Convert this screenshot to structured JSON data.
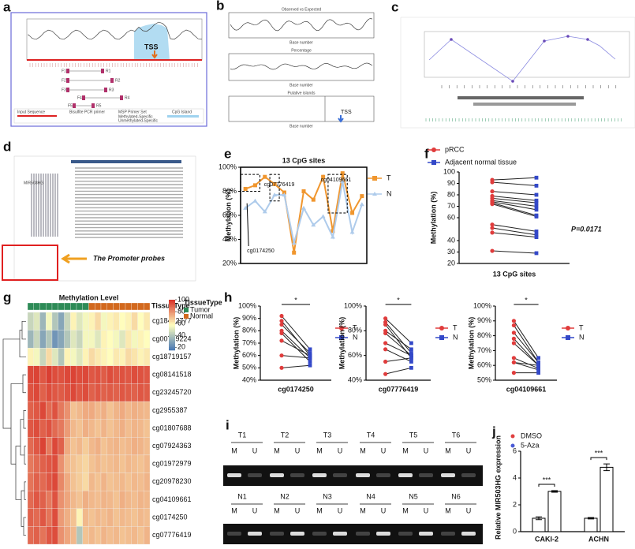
{
  "panel_labels": [
    "a",
    "b",
    "c",
    "d",
    "e",
    "f",
    "g",
    "h",
    "i",
    "j"
  ],
  "diagrams": {
    "a": {
      "tss": "TSS",
      "forward": [
        "F1",
        "F2",
        "F3",
        "F4",
        "F5"
      ],
      "reverse": [
        "R1",
        "R2",
        "R3",
        "R4",
        "R5"
      ],
      "legend": [
        "Input Sequence",
        "Bisulfite PCR primer",
        "MSP Primer Set",
        "CpG Island",
        "Methylated-Specific",
        "Unmethylated-Specific"
      ]
    },
    "b": {
      "titles": [
        "Observed vs Expected",
        "Percentage",
        "Putative islands"
      ],
      "xlabel": "Base number",
      "tss": "TSS"
    },
    "d": {
      "gene": "MIR503HG",
      "callout": "The Promoter probes"
    },
    "i": {
      "tumor": [
        "T1",
        "T2",
        "T3",
        "T4",
        "T5",
        "T6"
      ],
      "normal": [
        "N1",
        "N2",
        "N3",
        "N4",
        "N5",
        "N6"
      ],
      "lanes": [
        "M",
        "U"
      ]
    }
  },
  "chart_data": [
    {
      "type": "line",
      "title": "13 CpG sites",
      "ylabel": "Methylation (%)",
      "categories": [
        null,
        null,
        null,
        null,
        null,
        null,
        null,
        null,
        null,
        null,
        null,
        null,
        null
      ],
      "series": [
        {
          "name": "T",
          "color": "#f0962e",
          "values": [
            82,
            85,
            92,
            86,
            79,
            29,
            80,
            73,
            92,
            47,
            95,
            62,
            76
          ]
        },
        {
          "name": "N",
          "color": "#aecbeb",
          "values": [
            66,
            72,
            63,
            77,
            77,
            37,
            66,
            52,
            59,
            42,
            88,
            46,
            69
          ]
        }
      ],
      "ylim": [
        20,
        100
      ],
      "yticks": [
        {
          "value": 20,
          "label": "20%"
        },
        {
          "value": 40,
          "label": "40%"
        },
        {
          "value": 60,
          "label": "60%"
        },
        {
          "value": 80,
          "label": "80%"
        },
        {
          "value": 100,
          "label": "100%"
        }
      ],
      "annotations": [
        "cg0174250",
        "cg07776419",
        "cg04109661"
      ]
    },
    {
      "type": "paired",
      "xlabel": "13 CpG sites",
      "ylabel": "Methylation (%)",
      "annotation": "P=0.0171",
      "series": [
        {
          "name": "pRCC",
          "color": "#e03c3c",
          "values": [
            93,
            91,
            83,
            79,
            77,
            75,
            74,
            73,
            72,
            54,
            51,
            47,
            31
          ]
        },
        {
          "name": "Adjacent normal tissue",
          "color": "#3348c8",
          "values": [
            95,
            88,
            80,
            75,
            73,
            70,
            67,
            62,
            61,
            48,
            45,
            43,
            29
          ]
        }
      ],
      "ylim": [
        20,
        100
      ],
      "yticks": [
        20,
        30,
        40,
        60,
        70,
        80,
        90,
        100
      ]
    },
    {
      "type": "paired",
      "xlabel": "cg0174250",
      "ylabel": "Methylation (%)",
      "annotation": "*",
      "series": [
        {
          "name": "T",
          "color": "#e03c3c",
          "values": [
            92,
            88,
            85,
            80,
            78,
            72,
            60,
            50
          ]
        },
        {
          "name": "N",
          "color": "#3348c8",
          "values": [
            65,
            60,
            62,
            58,
            55,
            60,
            58,
            52
          ]
        }
      ],
      "ylim": [
        40,
        100
      ],
      "yticks": [
        {
          "value": 40,
          "label": "40%"
        },
        {
          "value": 50,
          "label": "50%"
        },
        {
          "value": 60,
          "label": "60%"
        },
        {
          "value": 70,
          "label": "70%"
        },
        {
          "value": 80,
          "label": "80%"
        },
        {
          "value": 90,
          "label": "90%"
        },
        {
          "value": 100,
          "label": "100%"
        }
      ]
    },
    {
      "type": "paired",
      "xlabel": "cg07776419",
      "ylabel": "Methylation (%)",
      "annotation": "*",
      "series": [
        {
          "name": "T",
          "color": "#e03c3c",
          "values": [
            90,
            87,
            85,
            80,
            78,
            70,
            65,
            55,
            45
          ]
        },
        {
          "name": "N",
          "color": "#3348c8",
          "values": [
            70,
            62,
            58,
            65,
            60,
            60,
            55,
            58,
            50
          ]
        }
      ],
      "ylim": [
        40,
        100
      ],
      "yticks": [
        {
          "value": 40,
          "label": "40%"
        },
        {
          "value": 60,
          "label": "60%"
        },
        {
          "value": 80,
          "label": "80%"
        },
        {
          "value": 100,
          "label": "100%"
        }
      ]
    },
    {
      "type": "paired",
      "xlabel": "cg04109661",
      "ylabel": "Methylation (%)",
      "annotation": "*",
      "series": [
        {
          "name": "T",
          "color": "#e03c3c",
          "values": [
            90,
            87,
            82,
            78,
            75,
            65,
            62,
            62,
            55
          ]
        },
        {
          "name": "N",
          "color": "#3348c8",
          "values": [
            65,
            62,
            62,
            60,
            60,
            58,
            60,
            57,
            55
          ]
        }
      ],
      "ylim": [
        50,
        100
      ],
      "yticks": [
        {
          "value": 50,
          "label": "50%"
        },
        {
          "value": 60,
          "label": "60%"
        },
        {
          "value": 70,
          "label": "70%"
        },
        {
          "value": 80,
          "label": "80%"
        },
        {
          "value": 90,
          "label": "90%"
        },
        {
          "value": 100,
          "label": "100%"
        }
      ]
    },
    {
      "type": "bar",
      "ylabel": "Relative MIR503HG expression",
      "categories": [
        "CAKI-2",
        "ACHN"
      ],
      "annotation": "***",
      "series": [
        {
          "name": "DMSO",
          "color": "#e04040",
          "values": [
            1.0,
            1.0
          ],
          "errors": [
            0.1,
            0.05
          ]
        },
        {
          "name": "5-Aza",
          "color": "#4a5bd6",
          "values": [
            3.0,
            4.8
          ],
          "errors": [
            0.06,
            0.25
          ]
        }
      ],
      "ylim": [
        0,
        6
      ],
      "yticks": [
        0,
        2,
        4,
        6
      ]
    },
    {
      "type": "heatmap",
      "title": "Methylation Level",
      "column_annotation_label": "TissueType",
      "legend": {
        "title": "TissueType",
        "items": [
          {
            "name": "Tumor",
            "color": "#2e8b57"
          },
          {
            "name": "Normal",
            "color": "#d2691e"
          }
        ]
      },
      "column_groups": [
        0,
        0,
        0,
        0,
        0,
        0,
        0,
        0,
        0,
        0,
        1,
        1,
        1,
        1,
        1,
        1,
        1,
        1,
        1,
        1
      ],
      "colors": [
        "#4575b4",
        "#ffffbf",
        "#d73027"
      ],
      "clim": [
        15,
        100
      ],
      "colorbar_ticks": [
        20,
        40,
        60,
        80,
        100
      ],
      "rows": [
        "cg18412777",
        "cg00719224",
        "cg18719157",
        "cg08141518",
        "cg23245720",
        "cg2955387",
        "cg01807688",
        "cg07924363",
        "cg01972979",
        "cg20978230",
        "cg04109661",
        "cg0174250",
        "cg07776419"
      ],
      "values": [
        [
          45,
          50,
          35,
          55,
          40,
          30,
          45,
          60,
          50,
          55,
          60,
          65,
          55,
          60,
          62,
          58,
          60,
          65,
          58,
          62
        ],
        [
          35,
          45,
          30,
          40,
          25,
          30,
          40,
          50,
          45,
          55,
          55,
          50,
          60,
          58,
          55,
          50,
          62,
          55,
          60,
          58
        ],
        [
          60,
          55,
          45,
          65,
          50,
          40,
          60,
          55,
          50,
          60,
          65,
          62,
          60,
          58,
          62,
          60,
          65,
          63,
          60,
          62
        ],
        [
          95,
          96,
          92,
          97,
          94,
          93,
          95,
          96,
          94,
          95,
          92,
          93,
          91,
          94,
          92,
          93,
          92,
          94,
          93,
          92
        ],
        [
          93,
          95,
          90,
          94,
          92,
          91,
          93,
          95,
          92,
          94,
          90,
          92,
          90,
          91,
          90,
          92,
          91,
          90,
          92,
          91
        ],
        [
          90,
          92,
          95,
          88,
          93,
          85,
          80,
          70,
          72,
          75,
          75,
          72,
          74,
          70,
          73,
          75,
          72,
          74,
          73,
          72
        ],
        [
          92,
          94,
          90,
          93,
          88,
          85,
          78,
          72,
          70,
          74,
          72,
          70,
          73,
          70,
          72,
          74,
          71,
          73,
          72,
          70
        ],
        [
          88,
          92,
          96,
          85,
          95,
          90,
          75,
          70,
          72,
          68,
          72,
          74,
          70,
          72,
          73,
          71,
          72,
          74,
          73,
          71
        ],
        [
          85,
          88,
          90,
          92,
          94,
          80,
          72,
          70,
          68,
          66,
          70,
          72,
          70,
          71,
          72,
          70,
          72,
          71,
          70,
          72
        ],
        [
          86,
          90,
          88,
          92,
          95,
          82,
          75,
          70,
          68,
          65,
          72,
          70,
          73,
          70,
          71,
          72,
          70,
          72,
          71,
          73
        ],
        [
          88,
          92,
          90,
          85,
          93,
          80,
          76,
          72,
          70,
          74,
          72,
          71,
          73,
          72,
          70,
          74,
          72,
          71,
          73,
          72
        ],
        [
          90,
          88,
          92,
          86,
          94,
          78,
          74,
          70,
          60,
          72,
          70,
          72,
          71,
          73,
          70,
          72,
          71,
          70,
          72,
          71
        ],
        [
          88,
          90,
          86,
          92,
          94,
          80,
          76,
          72,
          40,
          70,
          72,
          70,
          73,
          71,
          72,
          70,
          71,
          72,
          70,
          73
        ]
      ]
    }
  ]
}
